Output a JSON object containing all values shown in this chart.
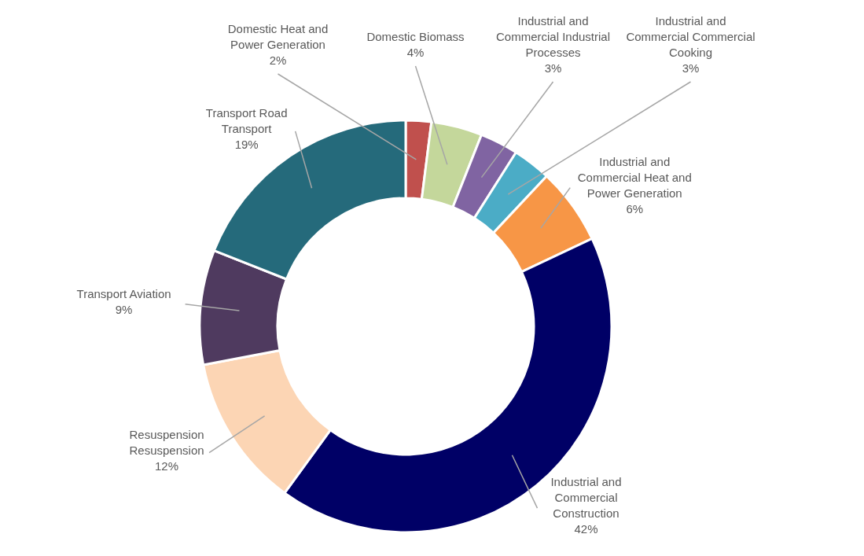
{
  "chart_data": {
    "type": "donut",
    "categories": [
      "Domestic Heat and Power Generation",
      "Domestic Biomass",
      "Industrial and Commercial Industrial Processes",
      "Industrial and Commercial Commercial Cooking",
      "Industrial and Commercial Heat and Power Generation",
      "Industrial and Commercial Construction",
      "Resuspension Resuspension",
      "Transport Aviation",
      "Transport Road Transport"
    ],
    "values": [
      2,
      4,
      3,
      3,
      6,
      42,
      12,
      9,
      19
    ],
    "value_labels": [
      "2%",
      "4%",
      "3%",
      "3%",
      "6%",
      "42%",
      "12%",
      "9%",
      "19%"
    ],
    "colors": [
      "#c0504d",
      "#c4d79b",
      "#8064a2",
      "#4bacc6",
      "#f79646",
      "#000066",
      "#fcd5b4",
      "#4f3a5f",
      "#256a7b"
    ]
  }
}
